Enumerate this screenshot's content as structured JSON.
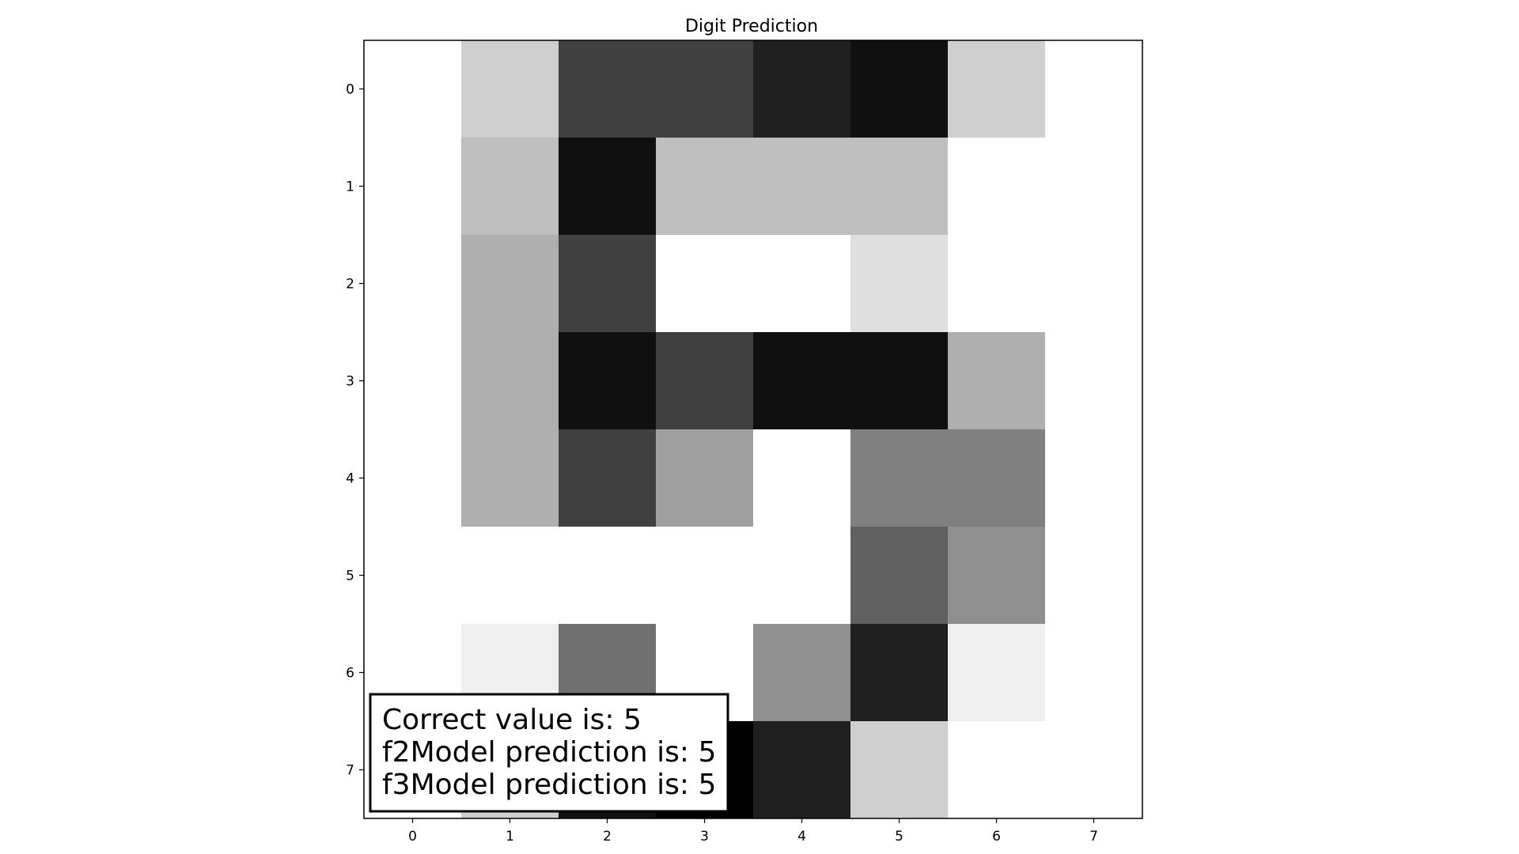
{
  "chart_data": {
    "type": "heatmap",
    "title": "Digit Prediction",
    "colormap": "gray_r",
    "x_ticks": [
      "0",
      "1",
      "2",
      "3",
      "4",
      "5",
      "6",
      "7"
    ],
    "y_ticks": [
      "0",
      "1",
      "2",
      "3",
      "4",
      "5",
      "6",
      "7"
    ],
    "vmin": 0,
    "vmax": 16,
    "values": [
      [
        0,
        3,
        12,
        12,
        14,
        15,
        3,
        0
      ],
      [
        0,
        4,
        15,
        4,
        4,
        4,
        0,
        0
      ],
      [
        0,
        5,
        12,
        0,
        0,
        2,
        0,
        0
      ],
      [
        0,
        5,
        15,
        12,
        15,
        15,
        5,
        0
      ],
      [
        0,
        5,
        12,
        6,
        0,
        8,
        8,
        0
      ],
      [
        0,
        0,
        0,
        0,
        0,
        10,
        7,
        0
      ],
      [
        0,
        1,
        9,
        0,
        7,
        14,
        1,
        0
      ],
      [
        0,
        3,
        15,
        16,
        14,
        3,
        0,
        0
      ]
    ],
    "annotation": {
      "lines": [
        "Correct value is: 5",
        "f2Model prediction is: 5",
        "f3Model prediction is: 5"
      ],
      "placement": "lower-left"
    }
  }
}
